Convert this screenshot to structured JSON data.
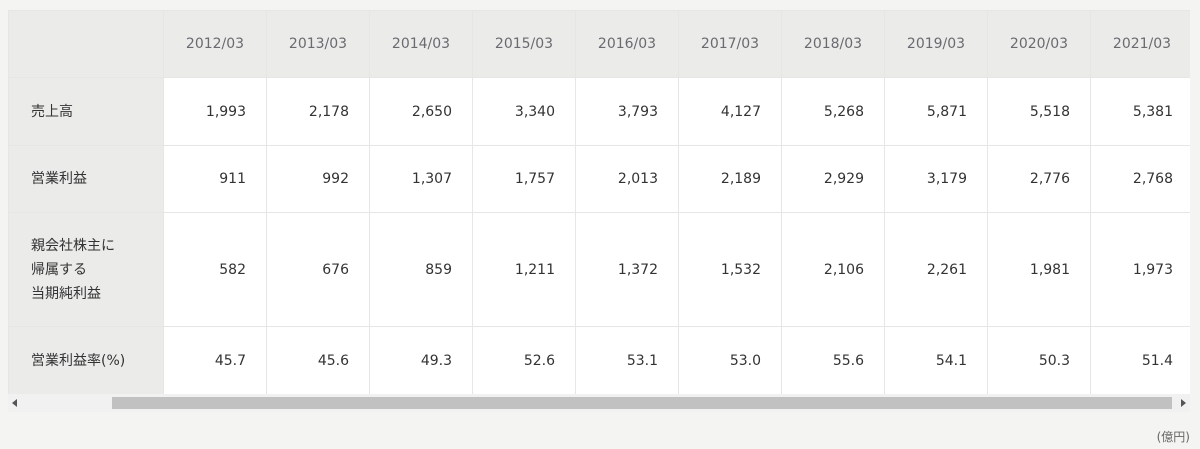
{
  "table": {
    "columns": [
      "2012/03",
      "2013/03",
      "2014/03",
      "2015/03",
      "2016/03",
      "2017/03",
      "2018/03",
      "2019/03",
      "2020/03",
      "2021/03"
    ],
    "rows": [
      {
        "label": [
          "売上高"
        ],
        "values": [
          "1,993",
          "2,178",
          "2,650",
          "3,340",
          "3,793",
          "4,127",
          "5,268",
          "5,871",
          "5,518",
          "5,381"
        ]
      },
      {
        "label": [
          "営業利益"
        ],
        "values": [
          "911",
          "992",
          "1,307",
          "1,757",
          "2,013",
          "2,189",
          "2,929",
          "3,179",
          "2,776",
          "2,768"
        ]
      },
      {
        "label": [
          "親会社株主に",
          "帰属する",
          "当期純利益"
        ],
        "values": [
          "582",
          "676",
          "859",
          "1,211",
          "1,372",
          "1,532",
          "2,106",
          "2,261",
          "1,981",
          "1,973"
        ]
      },
      {
        "label": [
          "営業利益率(%)"
        ],
        "values": [
          "45.7",
          "45.6",
          "49.3",
          "52.6",
          "53.1",
          "53.0",
          "55.6",
          "54.1",
          "50.3",
          "51.4"
        ]
      }
    ],
    "unit": "(億円)"
  }
}
